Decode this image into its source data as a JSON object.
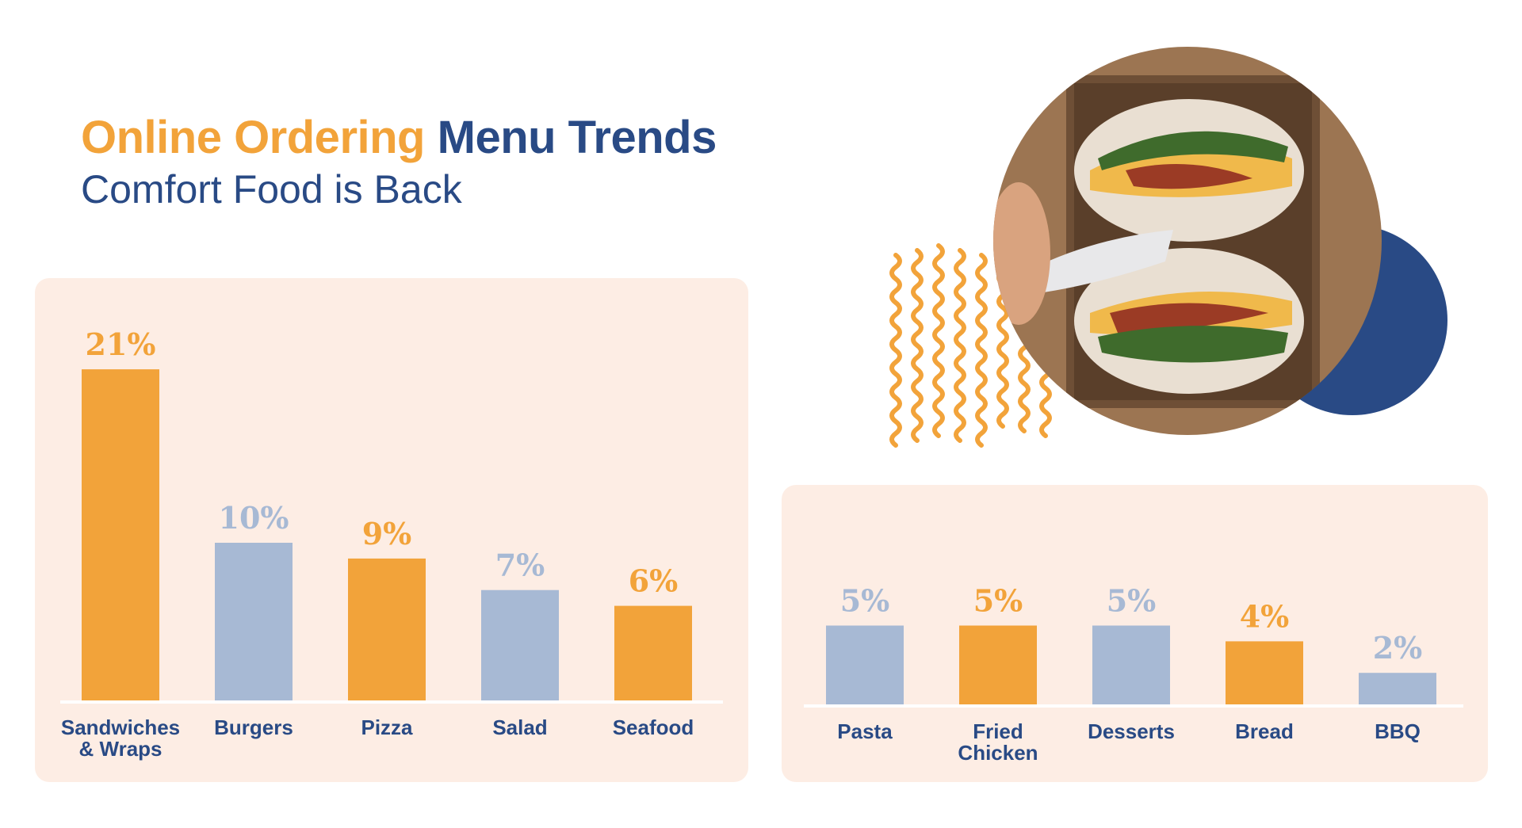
{
  "header": {
    "title_part1": "Online Ordering",
    "title_part2": "Menu Trends",
    "subtitle": "Comfort Food is Back"
  },
  "colors": {
    "orange": "#F2A33A",
    "blue_gray": "#A7B9D4",
    "navy": "#294A85",
    "panel": "#FDEDE4"
  },
  "chart_data": [
    {
      "type": "bar",
      "categories": [
        "Sandwiches & Wraps",
        "Burgers",
        "Pizza",
        "Salad",
        "Seafood"
      ],
      "values": [
        21,
        10,
        9,
        7,
        6
      ],
      "data_labels": [
        "21%",
        "10%",
        "9%",
        "7%",
        "6%"
      ],
      "bar_colors": [
        "#F2A33A",
        "#A7B9D4",
        "#F2A33A",
        "#A7B9D4",
        "#F2A33A"
      ],
      "unit": "%",
      "grid": false
    },
    {
      "type": "bar",
      "categories": [
        "Pasta",
        "Fried Chicken",
        "Desserts",
        "Bread",
        "BBQ"
      ],
      "values": [
        5,
        5,
        5,
        4,
        2
      ],
      "data_labels": [
        "5%",
        "5%",
        "5%",
        "4%",
        "2%"
      ],
      "bar_colors": [
        "#A7B9D4",
        "#F2A33A",
        "#A7B9D4",
        "#F2A33A",
        "#A7B9D4"
      ],
      "unit": "%",
      "grid": false
    }
  ],
  "image": {
    "subject": "sandwich-photo"
  }
}
